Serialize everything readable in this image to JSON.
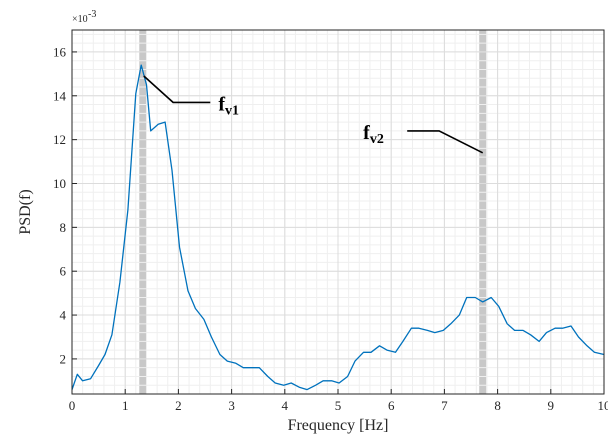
{
  "chart_data": {
    "type": "line",
    "xlabel": "Frequency [Hz]",
    "ylabel": "PSD(f)",
    "y_multiplier_label": "×10",
    "y_multiplier_exp": "-3",
    "xlim": [
      0,
      10
    ],
    "ylim": [
      0.4,
      17
    ],
    "xticks": [
      0,
      1,
      2,
      3,
      4,
      5,
      6,
      7,
      8,
      9,
      10
    ],
    "yticks": [
      2,
      4,
      6,
      8,
      10,
      12,
      14,
      16
    ],
    "grid": "major+minor",
    "minor_step_x": 0.2,
    "minor_step_y": 0.4,
    "line_color": "#0072BD",
    "highlight_color": "#C8C8C8",
    "highlight_bands": [
      1.33,
      7.72
    ],
    "series": [
      {
        "x": [
          0,
          0.1,
          0.2,
          0.35,
          0.5,
          0.62,
          0.75,
          0.9,
          1.05,
          1.2,
          1.3,
          1.4,
          1.48,
          1.62,
          1.75,
          1.88,
          2.02,
          2.18,
          2.32,
          2.48,
          2.62,
          2.78,
          2.92,
          3.08,
          3.22,
          3.38,
          3.52,
          3.68,
          3.82,
          3.98,
          4.12,
          4.28,
          4.42,
          4.58,
          4.72,
          4.88,
          5.02,
          5.18,
          5.32,
          5.48,
          5.62,
          5.78,
          5.92,
          6.08,
          6.22,
          6.38,
          6.52,
          6.68,
          6.82,
          6.98,
          7.12,
          7.28,
          7.42,
          7.58,
          7.72,
          7.88,
          8.02,
          8.18,
          8.32,
          8.48,
          8.62,
          8.78,
          8.92,
          9.08,
          9.22,
          9.38,
          9.52,
          9.68,
          9.82,
          10.0
        ],
        "y": [
          0.6,
          1.3,
          1.0,
          1.1,
          1.7,
          2.2,
          3.1,
          5.5,
          8.8,
          14.1,
          15.4,
          14.5,
          12.4,
          12.7,
          12.8,
          10.6,
          7.1,
          5.1,
          4.3,
          3.8,
          3.0,
          2.2,
          1.9,
          1.8,
          1.6,
          1.6,
          1.6,
          1.2,
          0.9,
          0.8,
          0.9,
          0.7,
          0.6,
          0.8,
          1.0,
          1.0,
          0.9,
          1.2,
          1.9,
          2.3,
          2.3,
          2.6,
          2.4,
          2.3,
          2.8,
          3.4,
          3.4,
          3.3,
          3.2,
          3.3,
          3.6,
          4.0,
          4.8,
          4.8,
          4.6,
          4.8,
          4.4,
          3.6,
          3.3,
          3.3,
          3.1,
          2.8,
          3.2,
          3.4,
          3.4,
          3.5,
          3.0,
          2.6,
          2.3,
          2.2
        ]
      }
    ],
    "annotations": [
      {
        "label": "f",
        "subscript": "v1",
        "anchor_x": 1.35,
        "anchor_y": 14.9,
        "elbow_x": 1.9,
        "elbow_y": 13.7,
        "end_x": 2.6,
        "end_y": 13.7
      },
      {
        "label": "f",
        "subscript": "v2",
        "anchor_x": 7.72,
        "anchor_y": 11.4,
        "elbow_x": 6.9,
        "elbow_y": 12.4,
        "end_x": 6.3,
        "end_y": 12.4
      }
    ]
  }
}
